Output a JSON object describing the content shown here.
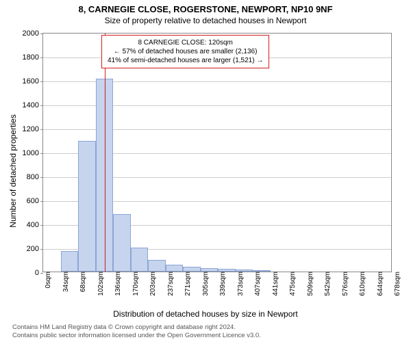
{
  "title_main": "8, CARNEGIE CLOSE, ROGERSTONE, NEWPORT, NP10 9NF",
  "title_sub": "Size of property relative to detached houses in Newport",
  "chart": {
    "type": "histogram",
    "ylim": [
      0,
      2000
    ],
    "ytick_step": 200,
    "yticks": [
      0,
      200,
      400,
      600,
      800,
      1000,
      1200,
      1400,
      1600,
      1800,
      2000
    ],
    "x_categories": [
      "0sqm",
      "34sqm",
      "68sqm",
      "102sqm",
      "136sqm",
      "170sqm",
      "203sqm",
      "237sqm",
      "271sqm",
      "305sqm",
      "339sqm",
      "373sqm",
      "407sqm",
      "441sqm",
      "475sqm",
      "509sqm",
      "542sqm",
      "576sqm",
      "610sqm",
      "644sqm",
      "678sqm"
    ],
    "values": [
      0,
      170,
      1090,
      1610,
      480,
      200,
      100,
      60,
      40,
      30,
      25,
      20,
      10,
      0,
      0,
      0,
      0,
      0,
      0,
      0
    ],
    "bar_fill": "#c6d4ee",
    "bar_border": "#8ca5d6",
    "grid_color": "#cccccc",
    "axis_color": "#888888",
    "background_color": "#ffffff",
    "marker_line_x": 120,
    "marker_line_color": "#d01c1c",
    "x_domain_max": 678
  },
  "annotation": {
    "line1": "8 CARNEGIE CLOSE: 120sqm",
    "line2": "← 57% of detached houses are smaller (2,136)",
    "line3": "41% of semi-detached houses are larger (1,521) →",
    "border_color": "#d01c1c"
  },
  "ylabel": "Number of detached properties",
  "xlabel": "Distribution of detached houses by size in Newport",
  "footer1": "Contains HM Land Registry data © Crown copyright and database right 2024.",
  "footer2": "Contains public sector information licensed under the Open Government Licence v3.0."
}
